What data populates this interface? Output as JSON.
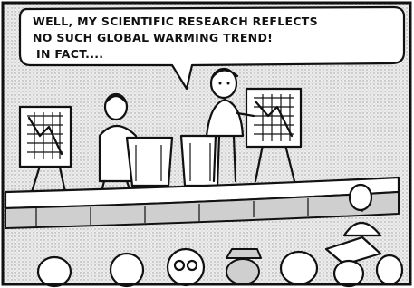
{
  "speech_bubble": {
    "lines": [
      "WELL, MY SCIENTIFIC RESEARCH REFLECTS",
      "NO SUCH GLOBAL WARMING TREND!",
      "IN FACT...."
    ]
  }
}
